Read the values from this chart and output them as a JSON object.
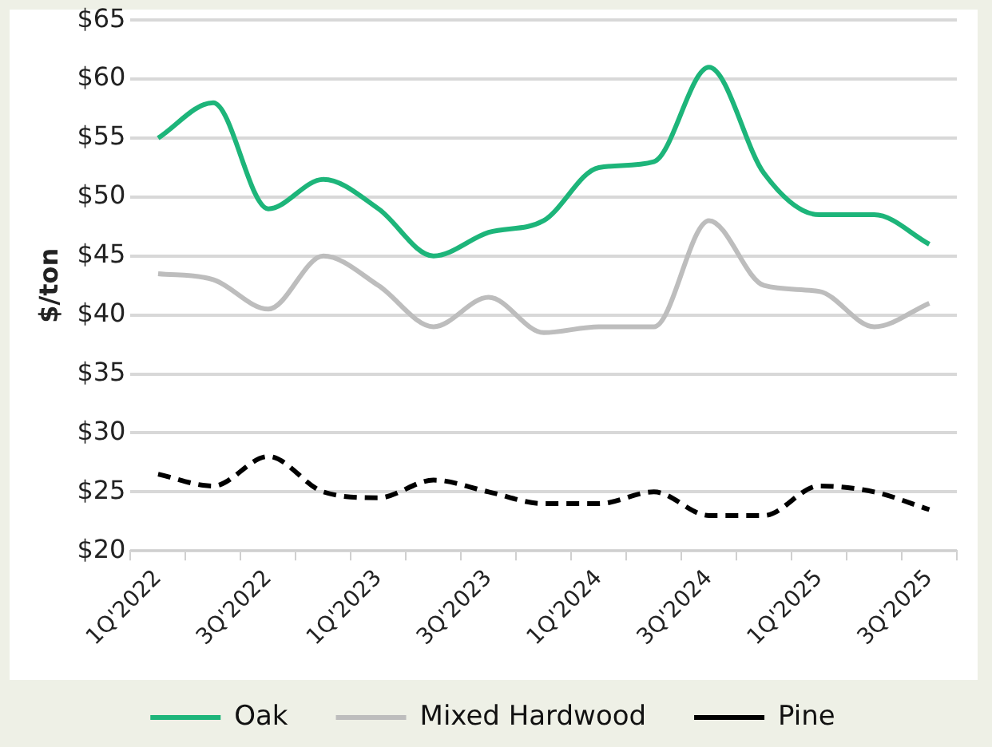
{
  "chart_data": {
    "type": "line",
    "ylabel": "$/ton",
    "categories": [
      "1Q'2022",
      null,
      "3Q'2022",
      null,
      "1Q'2023",
      null,
      "3Q'2023",
      null,
      "1Q'2024",
      null,
      "3Q'2024",
      null,
      "1Q'2025",
      null,
      "3Q'2025"
    ],
    "series": [
      {
        "name": "Oak",
        "color": "#1db57a",
        "line_style": "solid",
        "values": [
          55,
          58,
          49,
          51.5,
          49,
          45,
          47,
          48,
          52.5,
          53,
          61,
          52,
          48.5,
          48.5,
          46
        ]
      },
      {
        "name": "Mixed Hardwood",
        "color": "#bdbdbd",
        "line_style": "solid",
        "values": [
          43.5,
          43,
          40.5,
          45,
          42.5,
          39,
          41.5,
          38.5,
          39,
          39,
          48,
          42.5,
          42,
          39,
          41
        ]
      },
      {
        "name": "Pine",
        "color": "#000000",
        "line_style": "dashed",
        "values": [
          26.5,
          25.5,
          28,
          25,
          24.5,
          26,
          25,
          24,
          24,
          25,
          23,
          23,
          25.5,
          25,
          23.5
        ]
      }
    ],
    "ylim": [
      20,
      65
    ],
    "yticks": [
      {
        "value": 20,
        "label": "$20"
      },
      {
        "value": 25,
        "label": "$25"
      },
      {
        "value": 30,
        "label": "$30"
      },
      {
        "value": 35,
        "label": "$35"
      },
      {
        "value": 40,
        "label": "$40"
      },
      {
        "value": 45,
        "label": "$45"
      },
      {
        "value": 50,
        "label": "$50"
      },
      {
        "value": 55,
        "label": "$55"
      },
      {
        "value": 60,
        "label": "$60"
      },
      {
        "value": 65,
        "label": "$65"
      }
    ],
    "grid": "y",
    "legend": "bottom",
    "marker": "none"
  }
}
